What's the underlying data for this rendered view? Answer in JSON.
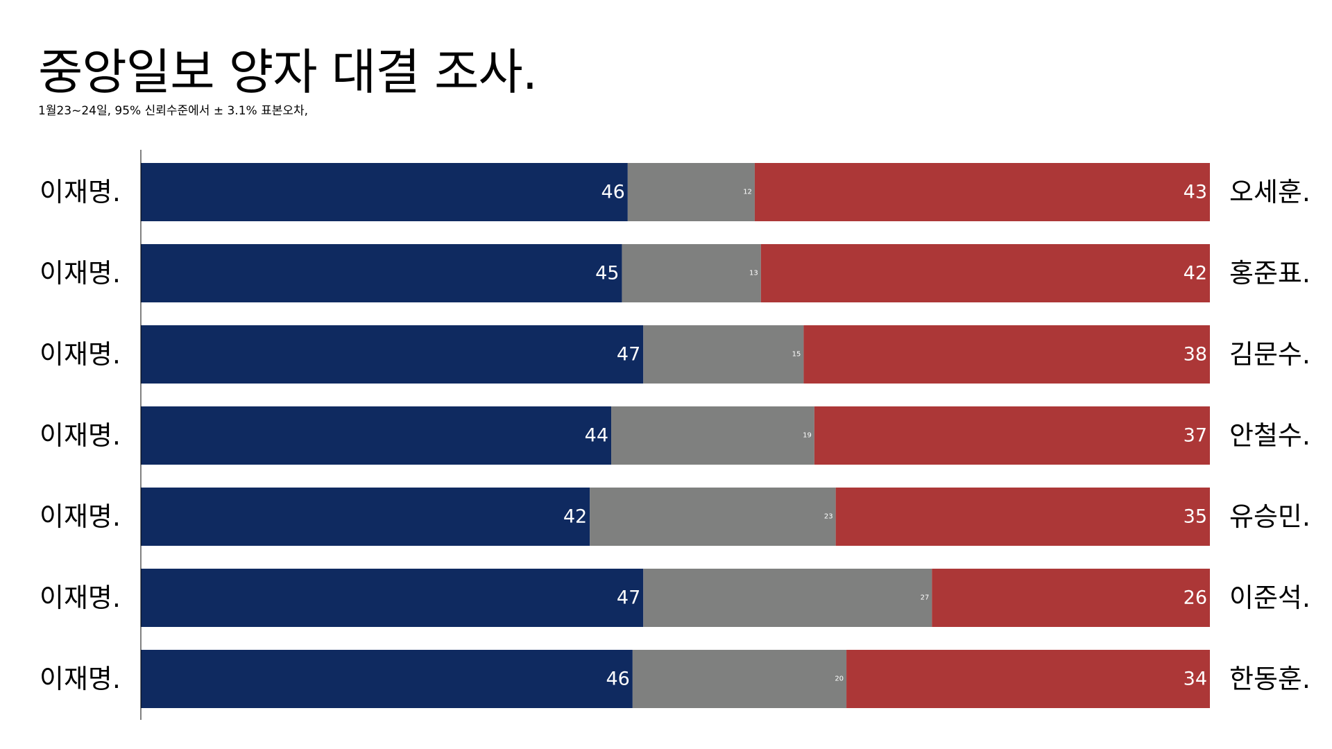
{
  "title": "중앙일보 양자 대결 조사.",
  "subtitle": "1월23~24일, 95% 신뢰수준에서 ± 3.1% 표본오차,",
  "colors": {
    "left": "#0f2a60",
    "middle": "#7f807f",
    "right": "#ac3737",
    "axis": "#000000"
  },
  "chart_data": {
    "type": "bar",
    "orientation": "horizontal-stacked-100",
    "title": "중앙일보 양자 대결 조사.",
    "rows": [
      {
        "left_name": "이재명.",
        "left": 46,
        "middle": 12,
        "right": 43,
        "right_name": "오세훈."
      },
      {
        "left_name": "이재명.",
        "left": 45,
        "middle": 13,
        "right": 42,
        "right_name": "홍준표."
      },
      {
        "left_name": "이재명.",
        "left": 47,
        "middle": 15,
        "right": 38,
        "right_name": "김문수."
      },
      {
        "left_name": "이재명.",
        "left": 44,
        "middle": 19,
        "right": 37,
        "right_name": "안철수."
      },
      {
        "left_name": "이재명.",
        "left": 42,
        "middle": 23,
        "right": 35,
        "right_name": "유승민."
      },
      {
        "left_name": "이재명.",
        "left": 47,
        "middle": 27,
        "right": 26,
        "right_name": "이준석."
      },
      {
        "left_name": "이재명.",
        "left": 46,
        "middle": 20,
        "right": 34,
        "right_name": "한동훈."
      }
    ]
  }
}
